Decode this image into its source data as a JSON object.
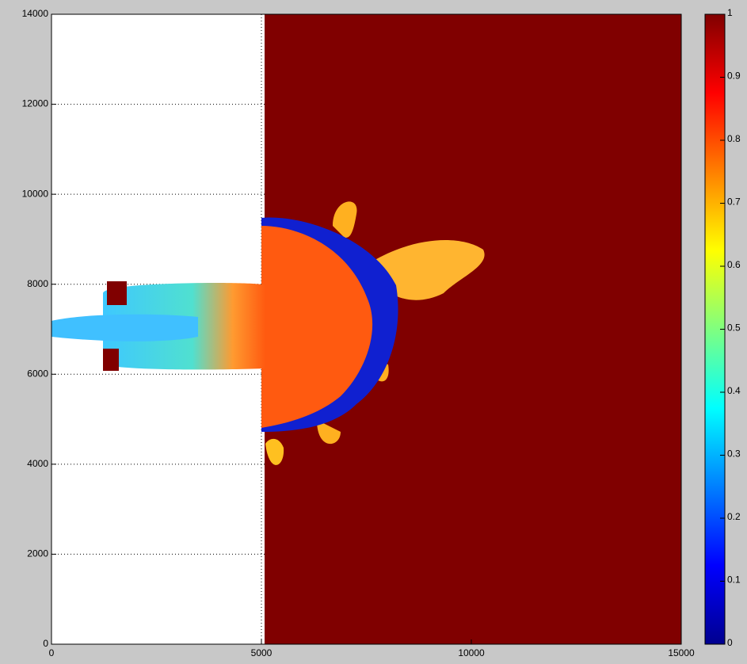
{
  "chart_data": {
    "type": "heatmap",
    "xlim": [
      0,
      15000
    ],
    "xticks": [
      0,
      5000,
      10000,
      15000
    ],
    "ylim": [
      0,
      14000
    ],
    "yticks": [
      0,
      2000,
      4000,
      6000,
      8000,
      10000,
      12000,
      14000
    ],
    "grid": true,
    "colormap": "jet",
    "clim": [
      0,
      1
    ],
    "cticks": [
      0,
      0.1,
      0.2,
      0.3,
      0.4,
      0.5,
      0.6,
      0.7,
      0.8,
      0.9,
      1
    ]
  }
}
